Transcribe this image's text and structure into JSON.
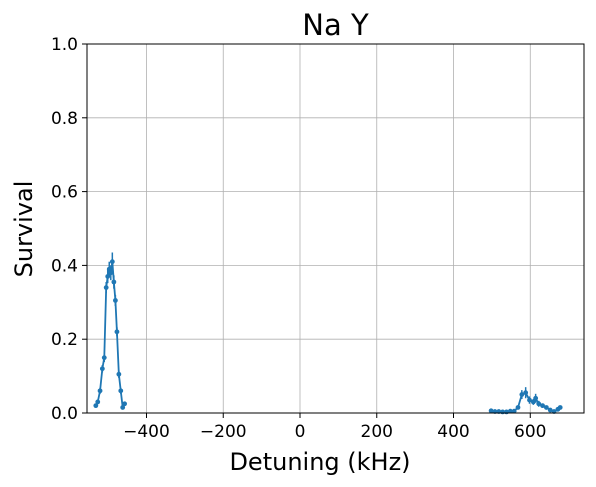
{
  "chart_data": {
    "type": "scatter",
    "title": "Na Y",
    "xlabel": "Detuning (kHz)",
    "ylabel": "Survival",
    "xlim": [
      -555,
      740
    ],
    "ylim": [
      0,
      1.0
    ],
    "x_ticks": [
      -400,
      -200,
      0,
      200,
      400,
      600
    ],
    "x_tick_labels": [
      "−400",
      "−200",
      "0",
      "200",
      "400",
      "600"
    ],
    "y_ticks": [
      0.0,
      0.2,
      0.4,
      0.6,
      0.8,
      1.0
    ],
    "y_tick_labels": [
      "0.0",
      "0.2",
      "0.4",
      "0.6",
      "0.8",
      "1.0"
    ],
    "grid": true,
    "series_color": "#1f77b4",
    "series": [
      {
        "segment": "left",
        "points": [
          {
            "x": -532,
            "y": 0.02,
            "err": 0.005
          },
          {
            "x": -527,
            "y": 0.03,
            "err": 0.005
          },
          {
            "x": -521,
            "y": 0.06,
            "err": 0.008
          },
          {
            "x": -515,
            "y": 0.12,
            "err": 0.01
          },
          {
            "x": -510,
            "y": 0.15,
            "err": 0.012
          },
          {
            "x": -505,
            "y": 0.34,
            "err": 0.015
          },
          {
            "x": -501,
            "y": 0.37,
            "err": 0.018
          },
          {
            "x": -497,
            "y": 0.39,
            "err": 0.02
          },
          {
            "x": -493,
            "y": 0.38,
            "err": 0.02
          },
          {
            "x": -489,
            "y": 0.41,
            "err": 0.025
          },
          {
            "x": -485,
            "y": 0.355,
            "err": 0.018
          },
          {
            "x": -481,
            "y": 0.305,
            "err": 0.015
          },
          {
            "x": -477,
            "y": 0.22,
            "err": 0.012
          },
          {
            "x": -472,
            "y": 0.105,
            "err": 0.01
          },
          {
            "x": -467,
            "y": 0.06,
            "err": 0.008
          },
          {
            "x": -462,
            "y": 0.015,
            "err": 0.005
          },
          {
            "x": -457,
            "y": 0.025,
            "err": 0.005
          }
        ]
      },
      {
        "segment": "right",
        "points": [
          {
            "x": 498,
            "y": 0.006,
            "err": 0.003
          },
          {
            "x": 508,
            "y": 0.004,
            "err": 0.003
          },
          {
            "x": 518,
            "y": 0.004,
            "err": 0.003
          },
          {
            "x": 528,
            "y": 0.003,
            "err": 0.003
          },
          {
            "x": 538,
            "y": 0.003,
            "err": 0.003
          },
          {
            "x": 548,
            "y": 0.005,
            "err": 0.003
          },
          {
            "x": 558,
            "y": 0.005,
            "err": 0.003
          },
          {
            "x": 568,
            "y": 0.015,
            "err": 0.005
          },
          {
            "x": 578,
            "y": 0.05,
            "err": 0.012
          },
          {
            "x": 588,
            "y": 0.055,
            "err": 0.015
          },
          {
            "x": 598,
            "y": 0.035,
            "err": 0.01
          },
          {
            "x": 608,
            "y": 0.03,
            "err": 0.008
          },
          {
            "x": 614,
            "y": 0.04,
            "err": 0.012
          },
          {
            "x": 622,
            "y": 0.025,
            "err": 0.008
          },
          {
            "x": 632,
            "y": 0.02,
            "err": 0.005
          },
          {
            "x": 642,
            "y": 0.015,
            "err": 0.005
          },
          {
            "x": 652,
            "y": 0.008,
            "err": 0.004
          },
          {
            "x": 662,
            "y": 0.004,
            "err": 0.003
          },
          {
            "x": 672,
            "y": 0.01,
            "err": 0.004
          },
          {
            "x": 678,
            "y": 0.015,
            "err": 0.004
          }
        ]
      }
    ]
  }
}
